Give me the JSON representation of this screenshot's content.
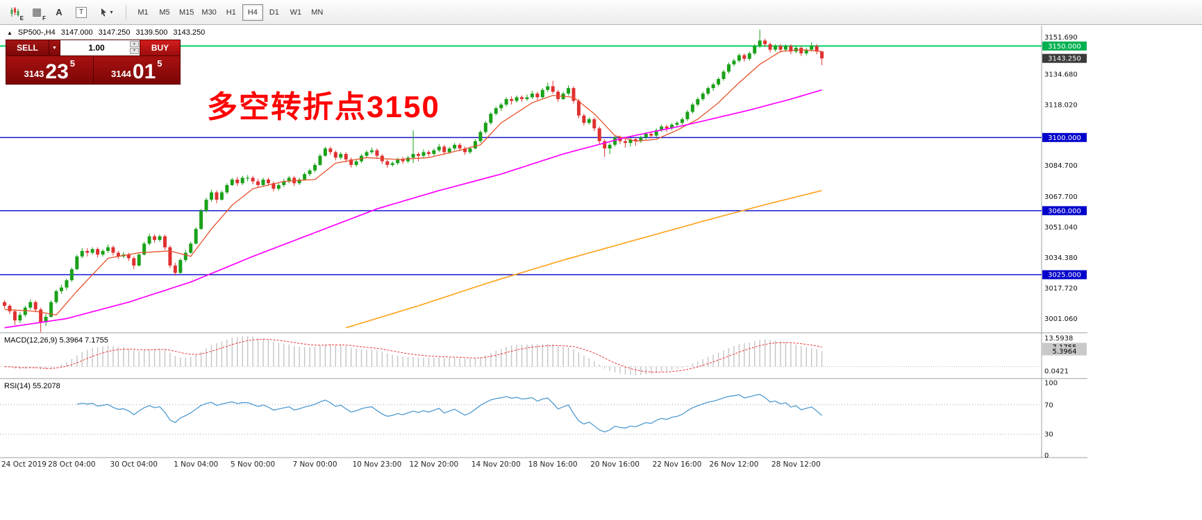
{
  "toolbar": {
    "icons": [
      {
        "name": "candlestick-chart-icon",
        "badge": "E"
      },
      {
        "name": "grid-icon",
        "badge": "F",
        "glyph": "▦"
      },
      {
        "name": "text-label-icon",
        "glyph": "A"
      },
      {
        "name": "text-box-icon",
        "glyph": "T"
      },
      {
        "name": "cursor-tool-icon",
        "caret": "▾"
      }
    ],
    "timeframes": [
      "M1",
      "M5",
      "M15",
      "M30",
      "H1",
      "H4",
      "D1",
      "W1",
      "MN"
    ],
    "active_timeframe": "H4"
  },
  "chart_header": {
    "collapse_icon": "▲",
    "symbol": "SP500-,H4",
    "open": "3147.000",
    "high": "3147.250",
    "low": "3139.500",
    "close": "3143.250"
  },
  "trade_panel": {
    "sell_label": "SELL",
    "buy_label": "BUY",
    "dropdown": "▼",
    "volume": "1.00",
    "spin_up": "▲",
    "spin_down": "▼",
    "sell_price_small": "3143",
    "sell_price_big": "23",
    "sell_price_sup": "5",
    "buy_price_small": "3144",
    "buy_price_big": "01",
    "buy_price_sup": "5",
    "sell_color": "#8e0b0b",
    "buy_color": "#c41414"
  },
  "annotation": {
    "text": "多空转折点3150",
    "color": "#ff0000"
  },
  "chart_data": {
    "type": "candlestick",
    "symbol": "SP500-",
    "timeframe": "H4",
    "colors": {
      "up": "#1aa11a",
      "down": "#e03030"
    },
    "price_axis": {
      "min": 2994,
      "max": 3160,
      "ticks": [
        3151.69,
        3134.68,
        3118.02,
        3084.7,
        3067.7,
        3051.04,
        3034.38,
        3017.72,
        3001.06
      ]
    },
    "hlines": [
      {
        "price": 3150.0,
        "label": "3150.000",
        "color": "#00d060",
        "label_bg": "#00b050",
        "width": 2
      },
      {
        "price": 3100.0,
        "label": "3100.000",
        "color": "#1414cc",
        "label_bg": "#0000cc",
        "width": 1.5
      },
      {
        "price": 3060.0,
        "label": "3060.000",
        "color": "#1414cc",
        "label_bg": "#0000cc",
        "width": 1.5
      },
      {
        "price": 3025.0,
        "label": "3025.000",
        "color": "#1414cc",
        "label_bg": "#0000cc",
        "width": 1.5
      }
    ],
    "current_price": {
      "price": 3143.25,
      "label": "3143.250",
      "label_bg": "#3a3a3a"
    },
    "candles": [
      [
        3010,
        3011,
        3006.5,
        3008
      ],
      [
        3008,
        3009,
        3003.5,
        3005
      ],
      [
        3005,
        3006,
        2997.5,
        3000
      ],
      [
        3000,
        3004.5,
        2998.5,
        3003
      ],
      [
        3003,
        3008,
        3002,
        3007
      ],
      [
        3007,
        3011.5,
        3006,
        3010
      ],
      [
        3010,
        3011,
        3004.5,
        3006
      ],
      [
        3006,
        3007,
        2993.5,
        2999
      ],
      [
        2999,
        3003.5,
        2997,
        3002
      ],
      [
        3002,
        3011,
        3001.5,
        3010
      ],
      [
        3010,
        3017,
        3009,
        3016
      ],
      [
        3016,
        3019.5,
        3014.5,
        3018
      ],
      [
        3018,
        3023,
        3016.5,
        3022
      ],
      [
        3022,
        3029,
        3021,
        3028
      ],
      [
        3028,
        3036,
        3027.5,
        3035
      ],
      [
        3035,
        3039.5,
        3034,
        3038
      ],
      [
        3038,
        3039.5,
        3035,
        3037
      ],
      [
        3037,
        3040,
        3036,
        3039
      ],
      [
        3039,
        3040,
        3034.5,
        3036
      ],
      [
        3036,
        3039,
        3035,
        3038
      ],
      [
        3038,
        3041.5,
        3037,
        3040
      ],
      [
        3040,
        3041,
        3035.5,
        3037
      ],
      [
        3037,
        3038,
        3033.5,
        3035
      ],
      [
        3035,
        3037.5,
        3034,
        3036
      ],
      [
        3036,
        3037,
        3032.5,
        3034
      ],
      [
        3034,
        3035,
        3028,
        3030
      ],
      [
        3030,
        3037,
        3029.5,
        3036
      ],
      [
        3036,
        3043,
        3035.5,
        3042
      ],
      [
        3042,
        3047.5,
        3041,
        3046
      ],
      [
        3046,
        3047,
        3042.5,
        3044
      ],
      [
        3044,
        3047,
        3043,
        3046
      ],
      [
        3046,
        3047,
        3038.5,
        3040
      ],
      [
        3040,
        3041,
        3028.5,
        3030
      ],
      [
        3030,
        3031.5,
        3024.5,
        3026
      ],
      [
        3026,
        3034,
        3025.5,
        3033
      ],
      [
        3033,
        3038.5,
        3032,
        3037
      ],
      [
        3037,
        3043,
        3036.5,
        3042
      ],
      [
        3042,
        3051,
        3041.5,
        3050
      ],
      [
        3050,
        3061,
        3049.5,
        3060
      ],
      [
        3060,
        3067,
        3059,
        3066
      ],
      [
        3066,
        3071.5,
        3065,
        3070
      ],
      [
        3070,
        3071,
        3064,
        3066
      ],
      [
        3066,
        3071,
        3065.5,
        3070
      ],
      [
        3070,
        3075,
        3069,
        3074
      ],
      [
        3074,
        3078,
        3073.5,
        3077
      ],
      [
        3077,
        3078.5,
        3073.5,
        3075
      ],
      [
        3075,
        3079,
        3074,
        3078
      ],
      [
        3078,
        3079.5,
        3076,
        3078
      ],
      [
        3078,
        3079,
        3074.5,
        3076
      ],
      [
        3076,
        3077.5,
        3072.5,
        3074
      ],
      [
        3074,
        3078,
        3073,
        3077
      ],
      [
        3077,
        3078,
        3073.5,
        3075
      ],
      [
        3075,
        3076,
        3070.5,
        3072
      ],
      [
        3072,
        3075,
        3071,
        3074
      ],
      [
        3074,
        3077.5,
        3073,
        3076
      ],
      [
        3076,
        3079,
        3075,
        3078
      ],
      [
        3078,
        3079,
        3073.5,
        3075
      ],
      [
        3075,
        3078,
        3074,
        3077
      ],
      [
        3077,
        3081,
        3076.5,
        3080
      ],
      [
        3080,
        3083,
        3079,
        3082
      ],
      [
        3082,
        3086,
        3081,
        3085
      ],
      [
        3085,
        3091,
        3084.5,
        3090
      ],
      [
        3090,
        3095,
        3089.5,
        3094
      ],
      [
        3094,
        3095,
        3090.5,
        3092
      ],
      [
        3092,
        3093,
        3087.5,
        3089
      ],
      [
        3089,
        3092,
        3088,
        3091
      ],
      [
        3091,
        3092,
        3086.5,
        3088
      ],
      [
        3088,
        3089,
        3083.5,
        3085
      ],
      [
        3085,
        3088,
        3084,
        3087
      ],
      [
        3087,
        3091,
        3086,
        3090
      ],
      [
        3090,
        3093,
        3089,
        3092
      ],
      [
        3092,
        3094.5,
        3091,
        3093
      ],
      [
        3093,
        3094,
        3088.5,
        3090
      ],
      [
        3090,
        3091,
        3085.5,
        3087
      ],
      [
        3087,
        3088,
        3083.5,
        3085
      ],
      [
        3085,
        3087,
        3084,
        3086
      ],
      [
        3086,
        3089,
        3085,
        3088
      ],
      [
        3088,
        3089.5,
        3085.5,
        3087
      ],
      [
        3087,
        3090,
        3086,
        3089
      ],
      [
        3089,
        3104,
        3086,
        3091
      ],
      [
        3091,
        3092,
        3087,
        3090
      ],
      [
        3090,
        3093.5,
        3089,
        3092
      ],
      [
        3092,
        3093,
        3089.5,
        3091
      ],
      [
        3091,
        3094,
        3090,
        3093
      ],
      [
        3093,
        3096.5,
        3092,
        3095
      ],
      [
        3095,
        3096,
        3090.5,
        3092
      ],
      [
        3092,
        3095,
        3091,
        3094
      ],
      [
        3094,
        3097,
        3093,
        3096
      ],
      [
        3096,
        3097,
        3092.5,
        3094
      ],
      [
        3094,
        3095,
        3090.5,
        3092
      ],
      [
        3092,
        3095,
        3091,
        3094
      ],
      [
        3094,
        3099,
        3093.5,
        3098
      ],
      [
        3098,
        3104,
        3097,
        3103
      ],
      [
        3103,
        3109,
        3102,
        3108
      ],
      [
        3108,
        3114,
        3107,
        3113
      ],
      [
        3113,
        3117,
        3112,
        3116
      ],
      [
        3116,
        3119,
        3114.5,
        3118
      ],
      [
        3118,
        3122,
        3117,
        3121
      ],
      [
        3121,
        3122.5,
        3118,
        3120
      ],
      [
        3120,
        3123,
        3119,
        3122
      ],
      [
        3122,
        3123,
        3119.5,
        3121
      ],
      [
        3121,
        3123.5,
        3120,
        3122
      ],
      [
        3122,
        3125.5,
        3121,
        3124
      ],
      [
        3124,
        3125,
        3120.5,
        3122
      ],
      [
        3122,
        3127,
        3121.5,
        3126
      ],
      [
        3126,
        3130,
        3125,
        3128
      ],
      [
        3128,
        3131,
        3124,
        3125
      ],
      [
        3125,
        3126,
        3119.5,
        3121
      ],
      [
        3121,
        3125,
        3120.5,
        3124
      ],
      [
        3124,
        3128.5,
        3123,
        3127
      ],
      [
        3127,
        3128,
        3118.5,
        3120
      ],
      [
        3120,
        3121,
        3110.5,
        3112
      ],
      [
        3112,
        3113,
        3106.5,
        3108
      ],
      [
        3108,
        3111,
        3107,
        3110
      ],
      [
        3110,
        3111,
        3103.5,
        3105
      ],
      [
        3105,
        3106,
        3096.5,
        3098
      ],
      [
        3098,
        3099,
        3089.5,
        3094
      ],
      [
        3094,
        3097,
        3091,
        3096
      ],
      [
        3096,
        3101,
        3095,
        3100
      ],
      [
        3100,
        3101,
        3096.5,
        3098
      ],
      [
        3098,
        3099.5,
        3094.5,
        3097
      ],
      [
        3097,
        3100,
        3095,
        3099
      ],
      [
        3099,
        3100,
        3095.5,
        3098
      ],
      [
        3098,
        3101,
        3097,
        3100
      ],
      [
        3100,
        3103,
        3099,
        3102
      ],
      [
        3102,
        3103.5,
        3099.5,
        3101
      ],
      [
        3101,
        3105,
        3100,
        3104
      ],
      [
        3104,
        3107,
        3103,
        3106
      ],
      [
        3106,
        3107,
        3103,
        3105
      ],
      [
        3105,
        3108,
        3104,
        3107
      ],
      [
        3107,
        3109,
        3106,
        3108
      ],
      [
        3108,
        3111,
        3107,
        3110
      ],
      [
        3110,
        3115,
        3109,
        3114
      ],
      [
        3114,
        3119,
        3113,
        3118
      ],
      [
        3118,
        3122,
        3117,
        3121
      ],
      [
        3121,
        3125,
        3120,
        3124
      ],
      [
        3124,
        3128,
        3123,
        3127
      ],
      [
        3127,
        3130,
        3125.5,
        3129
      ],
      [
        3129,
        3133,
        3128,
        3132
      ],
      [
        3132,
        3137,
        3131,
        3136
      ],
      [
        3136,
        3141,
        3135,
        3140
      ],
      [
        3140,
        3143,
        3139,
        3142
      ],
      [
        3142,
        3146,
        3141,
        3145
      ],
      [
        3145,
        3146,
        3141.5,
        3143
      ],
      [
        3143,
        3147,
        3142,
        3146
      ],
      [
        3146,
        3151,
        3145,
        3150
      ],
      [
        3150,
        3159,
        3149,
        3153
      ],
      [
        3153,
        3154,
        3149.5,
        3151
      ],
      [
        3151,
        3152,
        3146.5,
        3148
      ],
      [
        3148,
        3151,
        3147,
        3150
      ],
      [
        3150,
        3151,
        3146.5,
        3148
      ],
      [
        3148,
        3151,
        3147,
        3150
      ],
      [
        3150,
        3151,
        3145.5,
        3147
      ],
      [
        3147,
        3150,
        3146,
        3149
      ],
      [
        3149,
        3150,
        3144.5,
        3146
      ],
      [
        3146,
        3149,
        3145,
        3148
      ],
      [
        3148,
        3152,
        3147,
        3150
      ],
      [
        3150,
        3151,
        3145.5,
        3147
      ],
      [
        3147,
        3147.25,
        3139.5,
        3143.25
      ]
    ],
    "ma_lines": [
      {
        "name": "fast-ma-line",
        "color": "#e8502a",
        "width": 1.3,
        "points": [
          [
            0,
            3006
          ],
          [
            6,
            3005
          ],
          [
            10,
            3003
          ],
          [
            14,
            3016
          ],
          [
            20,
            3034
          ],
          [
            26,
            3037
          ],
          [
            32,
            3038
          ],
          [
            36,
            3035
          ],
          [
            40,
            3050
          ],
          [
            44,
            3063
          ],
          [
            48,
            3072
          ],
          [
            54,
            3076
          ],
          [
            60,
            3077
          ],
          [
            64,
            3086
          ],
          [
            70,
            3089
          ],
          [
            76,
            3088
          ],
          [
            82,
            3089
          ],
          [
            88,
            3093
          ],
          [
            92,
            3096
          ],
          [
            96,
            3108
          ],
          [
            102,
            3119
          ],
          [
            106,
            3123
          ],
          [
            110,
            3122
          ],
          [
            114,
            3113
          ],
          [
            118,
            3101
          ],
          [
            122,
            3098
          ],
          [
            126,
            3099
          ],
          [
            130,
            3104
          ],
          [
            134,
            3110
          ],
          [
            138,
            3119
          ],
          [
            142,
            3130
          ],
          [
            146,
            3140
          ],
          [
            150,
            3147
          ],
          [
            154,
            3148
          ],
          [
            158,
            3147
          ]
        ]
      },
      {
        "name": "mid-ma-line",
        "color": "#ff00ff",
        "width": 1.7,
        "points": [
          [
            0,
            2996
          ],
          [
            12,
            3001
          ],
          [
            24,
            3010
          ],
          [
            36,
            3021
          ],
          [
            48,
            3035
          ],
          [
            60,
            3048
          ],
          [
            72,
            3061
          ],
          [
            84,
            3071
          ],
          [
            96,
            3080
          ],
          [
            108,
            3091
          ],
          [
            120,
            3100
          ],
          [
            132,
            3107
          ],
          [
            144,
            3115
          ],
          [
            152,
            3121
          ],
          [
            158,
            3126
          ]
        ]
      },
      {
        "name": "slow-ma-line",
        "color": "#ffa520",
        "width": 1.7,
        "points": [
          [
            66,
            2996
          ],
          [
            80,
            3008
          ],
          [
            94,
            3021
          ],
          [
            108,
            3033
          ],
          [
            122,
            3044
          ],
          [
            136,
            3055
          ],
          [
            148,
            3064
          ],
          [
            158,
            3071
          ]
        ]
      }
    ],
    "time_labels": [
      {
        "i": 0,
        "label": "24 Oct 2019"
      },
      {
        "i": 13,
        "label": "28 Oct 04:00"
      },
      {
        "i": 25,
        "label": "30 Oct 04:00"
      },
      {
        "i": 37,
        "label": "1 Nov 04:00"
      },
      {
        "i": 48,
        "label": "5 Nov 00:00"
      },
      {
        "i": 60,
        "label": "7 Nov 00:00"
      },
      {
        "i": 72,
        "label": "10 Nov 23:00"
      },
      {
        "i": 83,
        "label": "12 Nov 20:00"
      },
      {
        "i": 95,
        "label": "14 Nov 20:00"
      },
      {
        "i": 106,
        "label": "18 Nov 16:00"
      },
      {
        "i": 118,
        "label": "20 Nov 16:00"
      },
      {
        "i": 130,
        "label": "22 Nov 16:00"
      },
      {
        "i": 141,
        "label": "26 Nov 12:00"
      },
      {
        "i": 153,
        "label": "28 Nov 12:00"
      }
    ],
    "macd": {
      "label": "MACD(12,26,9) 5.3964 7.1755",
      "params": [
        12,
        26,
        9
      ],
      "value": "5.3964",
      "signal": "7.1755",
      "axis_ticks": [
        {
          "v": 13.5938,
          "label": "13.5938"
        },
        {
          "v": 0.0421,
          "label": "0.0421"
        }
      ],
      "histogram_color": "#c4c4c4",
      "signal_color": "#ee3333"
    },
    "rsi": {
      "label": "RSI(14) 55.2078",
      "period": 14,
      "value": "55.2078",
      "levels": [
        100,
        70,
        30,
        0
      ],
      "dotted_levels": [
        70,
        30
      ],
      "color": "#4f9ad0",
      "range": [
        0,
        100
      ]
    }
  }
}
